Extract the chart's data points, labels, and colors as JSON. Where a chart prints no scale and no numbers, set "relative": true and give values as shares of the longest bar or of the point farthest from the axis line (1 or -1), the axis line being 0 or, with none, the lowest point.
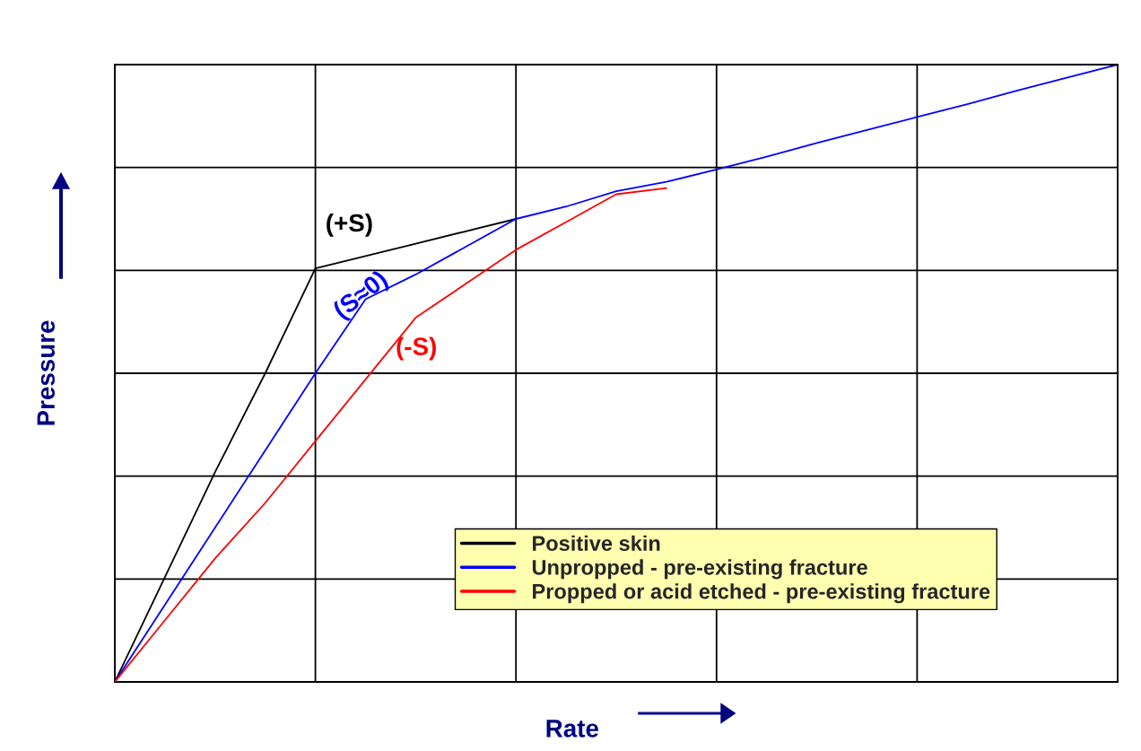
{
  "chart_data": {
    "type": "line",
    "xlabel": "Rate",
    "ylabel": "Pressure",
    "relative": true,
    "categories": [
      null,
      null,
      null,
      null,
      null,
      null,
      null,
      null,
      null,
      null,
      null,
      null,
      null,
      null,
      null,
      null,
      null,
      null,
      null,
      null,
      null
    ],
    "grid": true,
    "legend": "bottom right",
    "series": [
      {
        "name": "Positive skin",
        "color": "#000000",
        "values": [
          0,
          0.17,
          0.34,
          0.5,
          0.67,
          0.69,
          0.71,
          0.73,
          0.75,
          null,
          null,
          null,
          null,
          null,
          null,
          null,
          null,
          null,
          null,
          null,
          null
        ]
      },
      {
        "name": "Unpropped - pre-existing fracture",
        "color": "#0000ff",
        "values": [
          0,
          0.125,
          0.25,
          0.375,
          0.5,
          0.62,
          0.66,
          0.705,
          0.75,
          0.77,
          0.795,
          0.81,
          0.83,
          0.851,
          0.873,
          0.894,
          0.915,
          0.936,
          0.958,
          0.979,
          1
        ]
      },
      {
        "name": "Propped or acid etched - pre-existing fracture",
        "color": "#ff0000",
        "values": [
          0,
          0.1,
          0.2,
          0.29,
          0.39,
          0.49,
          0.59,
          0.645,
          0.7,
          0.745,
          0.79,
          0.8,
          null,
          null,
          null,
          null,
          null,
          null,
          null,
          null,
          null
        ]
      }
    ],
    "annotations": [
      "(+S)",
      "(S≈0)",
      "(-S)"
    ]
  }
}
